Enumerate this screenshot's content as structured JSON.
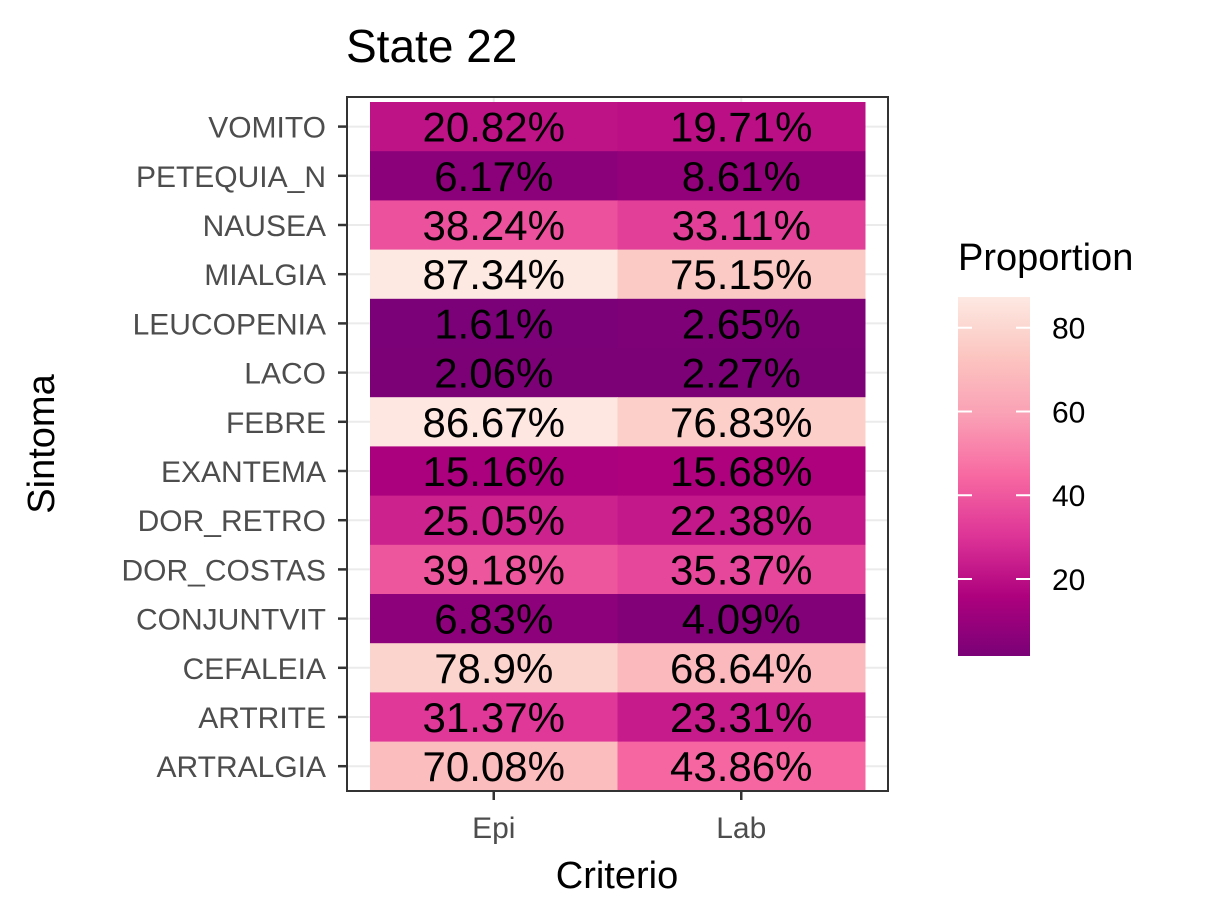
{
  "chart_data": {
    "type": "heatmap",
    "title": "State 22",
    "xlabel": "Criterio",
    "ylabel": "Sintoma",
    "x_categories": [
      "Epi",
      "Lab"
    ],
    "y_categories": [
      "VOMITO",
      "PETEQUIA_N",
      "NAUSEA",
      "MIALGIA",
      "LEUCOPENIA",
      "LACO",
      "FEBRE",
      "EXANTEMA",
      "DOR_RETRO",
      "DOR_COSTAS",
      "CONJUNTVIT",
      "CEFALEIA",
      "ARTRITE",
      "ARTRALGIA"
    ],
    "values": [
      [
        20.82,
        19.71
      ],
      [
        6.17,
        8.61
      ],
      [
        38.24,
        33.11
      ],
      [
        87.34,
        75.15
      ],
      [
        1.61,
        2.65
      ],
      [
        2.06,
        2.27
      ],
      [
        86.67,
        76.83
      ],
      [
        15.16,
        15.68
      ],
      [
        25.05,
        22.38
      ],
      [
        39.18,
        35.37
      ],
      [
        6.83,
        4.09
      ],
      [
        78.9,
        68.64
      ],
      [
        31.37,
        23.31
      ],
      [
        70.08,
        43.86
      ]
    ],
    "labels": [
      [
        "20.82%",
        "19.71%"
      ],
      [
        "6.17%",
        "8.61%"
      ],
      [
        "38.24%",
        "33.11%"
      ],
      [
        "87.34%",
        "75.15%"
      ],
      [
        "1.61%",
        "2.65%"
      ],
      [
        "2.06%",
        "2.27%"
      ],
      [
        "86.67%",
        "76.83%"
      ],
      [
        "15.16%",
        "15.68%"
      ],
      [
        "25.05%",
        "22.38%"
      ],
      [
        "39.18%",
        "35.37%"
      ],
      [
        "6.83%",
        "4.09%"
      ],
      [
        "78.9%",
        "68.64%"
      ],
      [
        "31.37%",
        "23.31%"
      ],
      [
        "70.08%",
        "43.86%"
      ]
    ],
    "legend": {
      "title": "Proportion",
      "ticks": [
        20,
        40,
        60,
        80
      ],
      "range": [
        1.61,
        87.34
      ],
      "placement": "right"
    },
    "color_scale": {
      "low": "#7a0177",
      "mid": "#f768a1",
      "high": "#fde9e2",
      "stops": [
        "#7a0177",
        "#ae017e",
        "#dd3497",
        "#f768a1",
        "#fa9fb5",
        "#fcc5c0",
        "#fde9e2"
      ]
    },
    "grid": true
  }
}
